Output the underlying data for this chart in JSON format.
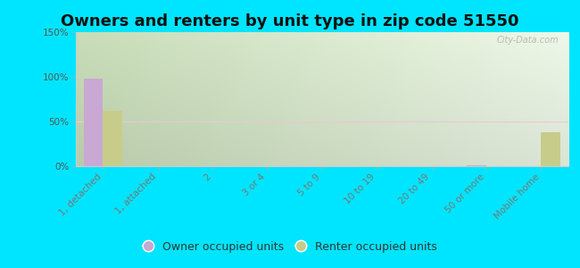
{
  "title": "Owners and renters by unit type in zip code 51550",
  "categories": [
    "1, detached",
    "1, attached",
    "2",
    "3 or 4",
    "5 to 9",
    "10 to 19",
    "20 to 49",
    "50 or more",
    "Mobile home"
  ],
  "owner_values": [
    98,
    0,
    0,
    0,
    0,
    0,
    0,
    1,
    0
  ],
  "renter_values": [
    62,
    0,
    0,
    0,
    0,
    0,
    0,
    0,
    38
  ],
  "owner_color": "#c9a8d4",
  "renter_color": "#c8cc8a",
  "ylim": [
    0,
    150
  ],
  "yticks": [
    0,
    50,
    100,
    150
  ],
  "ytick_labels": [
    "0%",
    "50%",
    "100%",
    "150%"
  ],
  "outer_bg_color": "#00e5ff",
  "bar_width": 0.35,
  "title_fontsize": 13,
  "tick_fontsize": 7.5,
  "legend_fontsize": 9,
  "watermark": "City-Data.com",
  "bg_colors_lr": [
    "#c8ddb8",
    "#eef8e8"
  ],
  "grid_line_color": "#e8c8d8"
}
